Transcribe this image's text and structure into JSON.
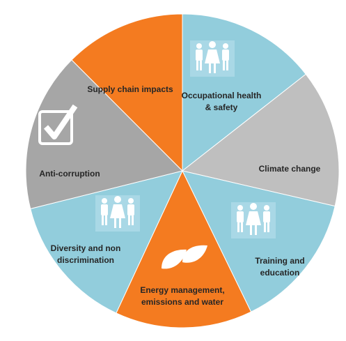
{
  "segments": [
    {
      "lines": [
        "Occupational health",
        "& safety"
      ]
    },
    {
      "lines": [
        "Climate change"
      ]
    },
    {
      "lines": [
        "Training and",
        "education"
      ]
    },
    {
      "lines": [
        "Energy management,",
        "emissions and water"
      ]
    },
    {
      "lines": [
        "Diversity and non",
        "discrimination"
      ]
    },
    {
      "lines": [
        "Anti-corruption"
      ]
    },
    {
      "lines": [
        "Supply chain impacts"
      ]
    }
  ]
}
